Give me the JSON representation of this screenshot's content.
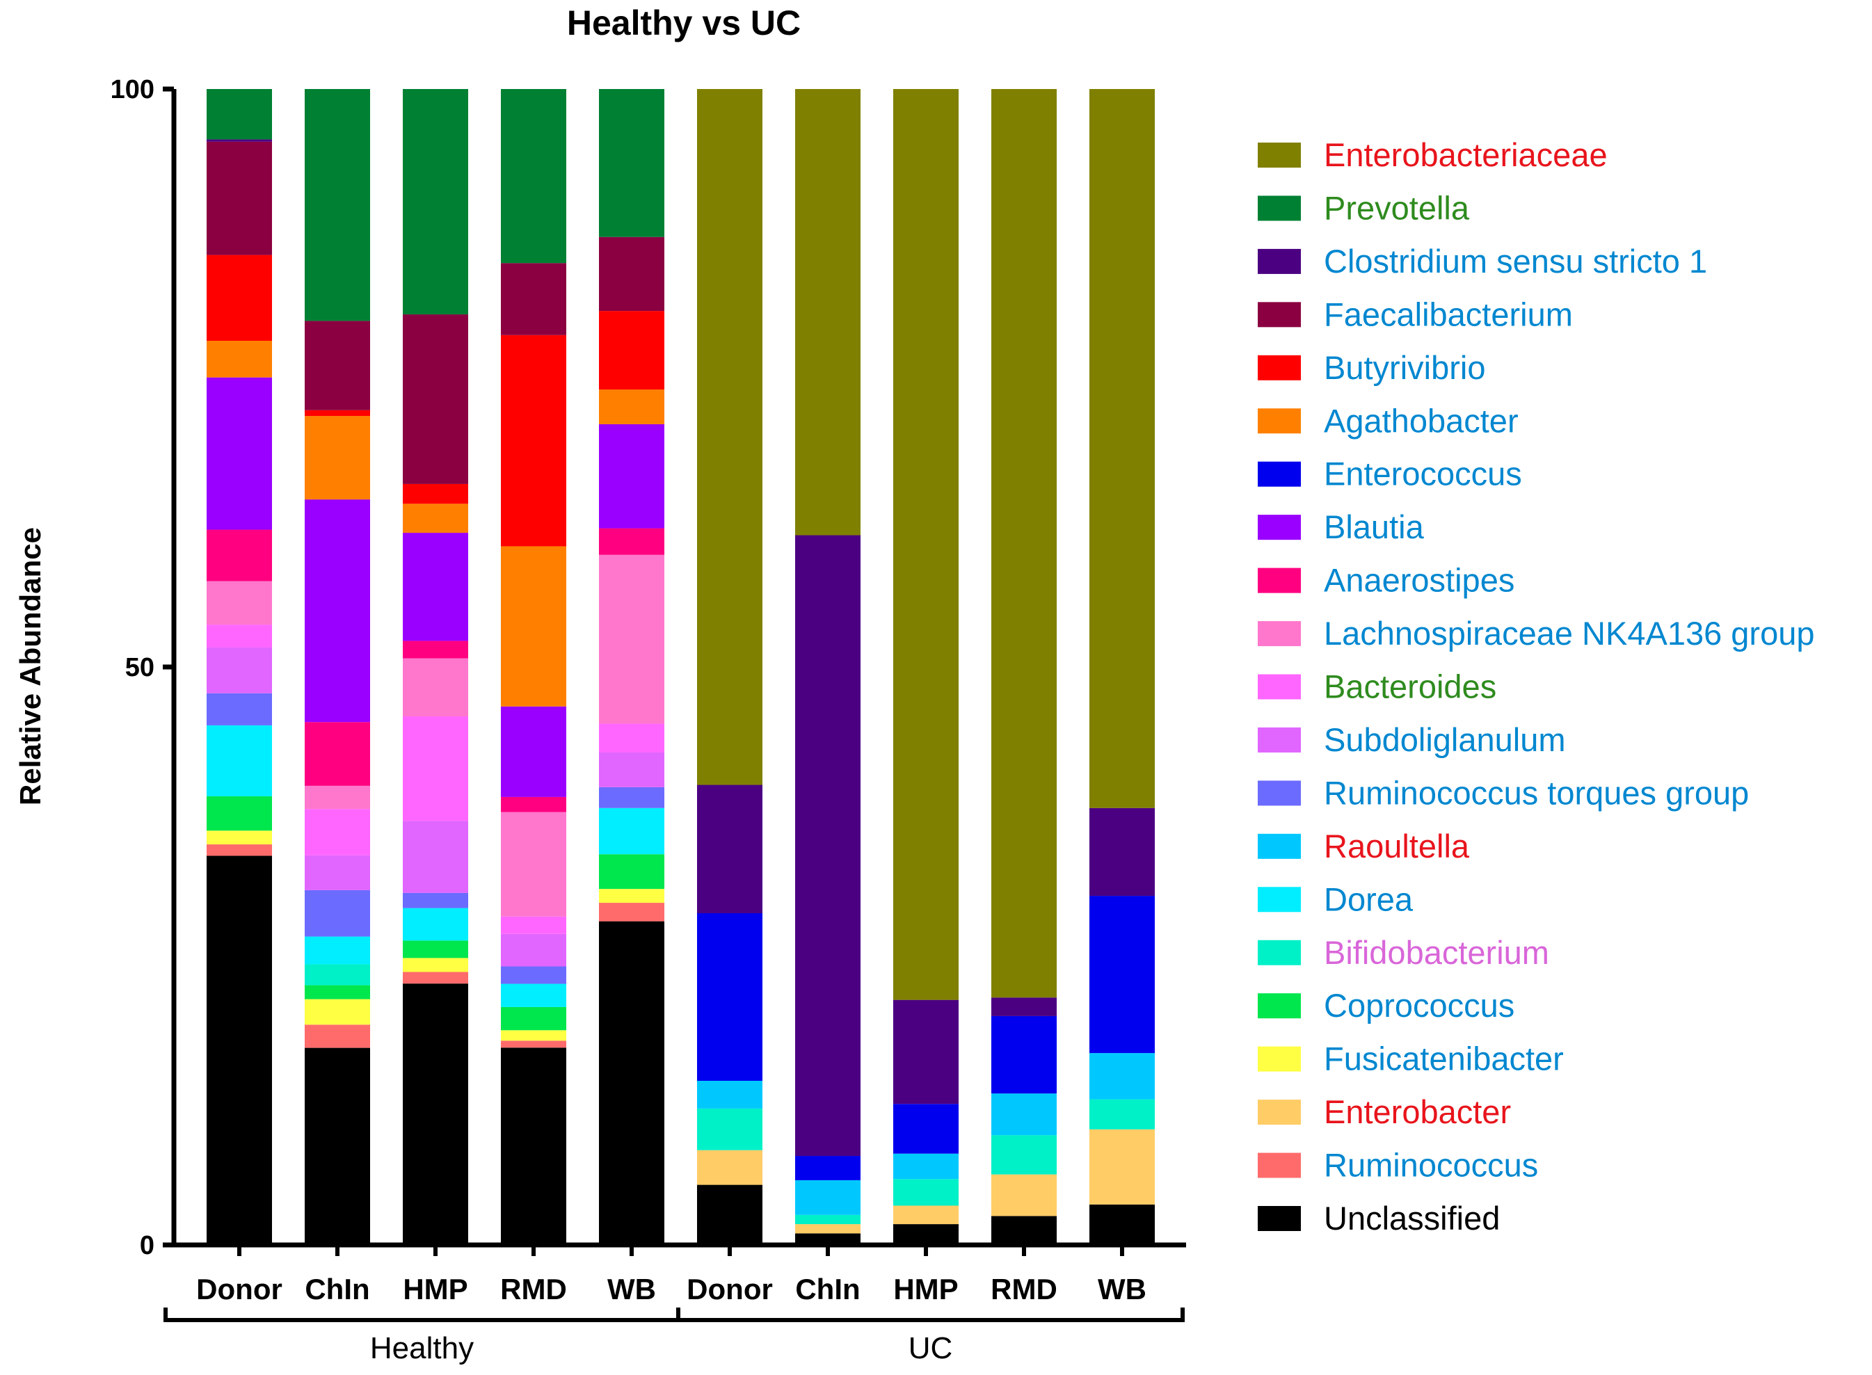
{
  "chart_data": {
    "type": "bar",
    "stacked": true,
    "title": "Healthy vs UC",
    "ylabel": "Relative Abundance",
    "xlabel": "",
    "ylim": [
      0,
      100
    ],
    "yticks": [
      0,
      50,
      100
    ],
    "categories": [
      "Donor",
      "ChIn",
      "HMP",
      "RMD",
      "WB",
      "Donor",
      "ChIn",
      "HMP",
      "RMD",
      "WB"
    ],
    "groups": [
      {
        "label": "Healthy",
        "range": [
          0,
          4
        ]
      },
      {
        "label": "UC",
        "range": [
          5,
          9
        ]
      }
    ],
    "legend_position": "right",
    "series": [
      {
        "name": "Unclassified",
        "color": "#000000",
        "label_color": "#000000",
        "values": [
          34,
          17,
          22.5,
          17,
          28,
          5.2,
          1,
          1.8,
          2.5,
          3.5
        ]
      },
      {
        "name": "Ruminococcus",
        "color": "#FF6B6B",
        "label_color": "#0087D0",
        "values": [
          1,
          2,
          1,
          0.6,
          1.6,
          0,
          0,
          0,
          0,
          0
        ]
      },
      {
        "name": "Enterobacter",
        "color": "#FFCC66",
        "label_color": "#E8141C",
        "values": [
          0,
          0,
          0,
          0,
          0,
          3,
          0.8,
          1.6,
          3.6,
          6.5
        ]
      },
      {
        "name": "Fusicatenibacter",
        "color": "#FFFF44",
        "label_color": "#0087D0",
        "values": [
          1.2,
          2.2,
          1.2,
          0.9,
          1.2,
          0,
          0,
          0,
          0,
          0
        ]
      },
      {
        "name": "Coprococcus",
        "color": "#00E64D",
        "label_color": "#0087D0",
        "values": [
          3,
          1.2,
          1.5,
          2,
          3,
          0,
          0,
          0,
          0,
          0
        ]
      },
      {
        "name": "Bifidobacterium",
        "color": "#00F0C8",
        "label_color": "#D966D9",
        "values": [
          0,
          1.8,
          0,
          0,
          0,
          3.6,
          0.8,
          2.3,
          3.4,
          2.6
        ]
      },
      {
        "name": "Dorea",
        "color": "#00EEFF",
        "label_color": "#0087D0",
        "values": [
          6.2,
          2.4,
          2.8,
          2,
          4,
          0,
          0,
          0,
          0,
          0
        ]
      },
      {
        "name": "Raoultella",
        "color": "#00C8FF",
        "label_color": "#E8141C",
        "values": [
          0,
          0,
          0,
          0,
          0,
          2.4,
          3,
          2.2,
          3.6,
          4
        ]
      },
      {
        "name": "Ruminococcus torques group",
        "color": "#6B6BFF",
        "label_color": "#0087D0",
        "values": [
          2.8,
          4,
          1.3,
          1.5,
          1.8,
          0,
          0,
          0,
          0,
          0
        ]
      },
      {
        "name": "Subdoliglanulum",
        "color": "#E066FF",
        "label_color": "#0087D0",
        "values": [
          4,
          3,
          6.2,
          2.8,
          3,
          0,
          0,
          0,
          0,
          0
        ]
      },
      {
        "name": "Bacteroides",
        "color": "#FF66FF",
        "label_color": "#2E8B1E",
        "values": [
          2,
          4,
          9,
          1.5,
          2.5,
          0,
          0,
          0,
          0,
          0
        ]
      },
      {
        "name": "Lachnospiraceae NK4A136 group",
        "color": "#FF77CC",
        "label_color": "#0087D0",
        "values": [
          3.8,
          2,
          5,
          9,
          14.6,
          0,
          0,
          0,
          0,
          0
        ]
      },
      {
        "name": "Anaerostipes",
        "color": "#FF0080",
        "label_color": "#0087D0",
        "values": [
          4.5,
          5.5,
          1.5,
          1.3,
          2.3,
          0,
          0,
          0,
          0,
          0
        ]
      },
      {
        "name": "Blautia",
        "color": "#9900FF",
        "label_color": "#0087D0",
        "values": [
          13.3,
          19.2,
          9.3,
          7.8,
          9,
          0,
          0,
          0,
          0,
          0
        ]
      },
      {
        "name": "Enterococcus",
        "color": "#0000EE",
        "label_color": "#0087D0",
        "values": [
          0,
          0,
          0,
          0,
          0,
          14.5,
          2.1,
          4.3,
          6.7,
          13.6
        ]
      },
      {
        "name": "Agathobacter",
        "color": "#FF8000",
        "label_color": "#0087D0",
        "values": [
          3.2,
          7.2,
          2.5,
          13.8,
          3,
          0,
          0,
          0,
          0,
          0
        ]
      },
      {
        "name": "Butyrivibrio",
        "color": "#FF0000",
        "label_color": "#0087D0",
        "values": [
          7.5,
          0.5,
          1.7,
          18.2,
          6.8,
          0,
          0,
          0,
          0,
          0
        ]
      },
      {
        "name": "Faecalibacterium",
        "color": "#8B0040",
        "label_color": "#0087D0",
        "values": [
          9.9,
          7.7,
          14.6,
          6.2,
          6.4,
          0,
          0,
          0,
          0,
          0
        ]
      },
      {
        "name": "Clostridium sensu stricto 1",
        "color": "#4B0082",
        "label_color": "#0087D0",
        "values": [
          0.2,
          0,
          0,
          0,
          0,
          11.1,
          53.7,
          9,
          1.6,
          7.6
        ]
      },
      {
        "name": "Prevotella",
        "color": "#008033",
        "label_color": "#2E8B1E",
        "values": [
          4.4,
          20,
          19.4,
          15,
          12.8,
          0,
          0,
          0,
          0,
          0
        ]
      },
      {
        "name": "Enterobacteriaceae",
        "color": "#808000",
        "label_color": "#E8141C",
        "values": [
          0,
          0,
          0,
          0,
          0,
          60.2,
          38.6,
          78.8,
          78.6,
          62.2
        ]
      }
    ],
    "legend_order": [
      "Enterobacteriaceae",
      "Prevotella",
      "Clostridium sensu stricto 1",
      "Faecalibacterium",
      "Butyrivibrio",
      "Agathobacter",
      "Enterococcus",
      "Blautia",
      "Anaerostipes",
      "Lachnospiraceae NK4A136 group",
      "Bacteroides",
      "Subdoliglanulum",
      "Ruminococcus torques group",
      "Raoultella",
      "Dorea",
      "Bifidobacterium",
      "Coprococcus",
      "Fusicatenibacter",
      "Enterobacter",
      "Ruminococcus",
      "Unclassified"
    ]
  }
}
